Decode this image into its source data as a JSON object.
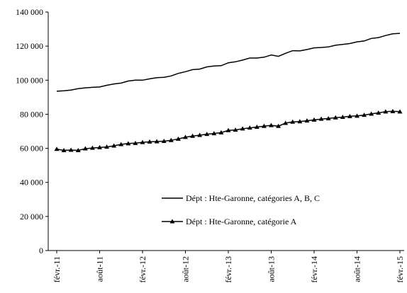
{
  "chart_data": {
    "type": "line",
    "categories": [
      "févr.-11",
      null,
      null,
      null,
      null,
      null,
      "août-11",
      null,
      null,
      null,
      null,
      null,
      "févr.-12",
      null,
      null,
      null,
      null,
      null,
      "août-12",
      null,
      null,
      null,
      null,
      null,
      "févr.-13",
      null,
      null,
      null,
      null,
      null,
      "août-13",
      null,
      null,
      null,
      null,
      null,
      "févr.-14",
      null,
      null,
      null,
      null,
      null,
      "août-14",
      null,
      null,
      null,
      null,
      null,
      "févr.-15"
    ],
    "series": [
      {
        "name": "Dépt : Hte-Garonne, catégories A, B, C",
        "color": "#000000",
        "marker": "none",
        "values": [
          93500,
          93800,
          94200,
          95000,
          95500,
          95800,
          96000,
          97000,
          97800,
          98300,
          99500,
          100000,
          100000,
          100800,
          101500,
          101700,
          102500,
          104000,
          105000,
          106200,
          106500,
          107800,
          108300,
          108500,
          110200,
          110800,
          111800,
          113000,
          113000,
          113500,
          114800,
          114000,
          115800,
          117300,
          117200,
          118000,
          119000,
          119200,
          119500,
          120500,
          121000,
          121500,
          122500,
          123000,
          124500,
          125000,
          126200,
          127200,
          127500
        ]
      },
      {
        "name": "Dépt : Hte-Garonne, catégorie A",
        "color": "#000000",
        "marker": "triangle",
        "values": [
          59500,
          58800,
          59000,
          58800,
          59800,
          60200,
          60500,
          60800,
          61500,
          62300,
          62800,
          63000,
          63500,
          63800,
          64000,
          64200,
          64700,
          65500,
          66500,
          67200,
          67700,
          68300,
          68700,
          69200,
          70500,
          70800,
          71500,
          72000,
          72500,
          73000,
          73500,
          73000,
          74800,
          75500,
          75700,
          76200,
          76700,
          77200,
          77500,
          78000,
          78300,
          78800,
          79000,
          79500,
          80200,
          80800,
          81500,
          81700,
          81500
        ]
      }
    ],
    "ylim": [
      0,
      140000
    ],
    "yticks": [
      0,
      {
        "value": 20000,
        "label": "20 000"
      },
      {
        "value": 40000,
        "label": "40 000"
      },
      {
        "value": 60000,
        "label": "60 000"
      },
      {
        "value": 80000,
        "label": "80 000"
      },
      {
        "value": 100000,
        "label": "100 000"
      },
      {
        "value": 120000,
        "label": "120 000"
      },
      {
        "value": 140000,
        "label": "140 000"
      }
    ]
  }
}
